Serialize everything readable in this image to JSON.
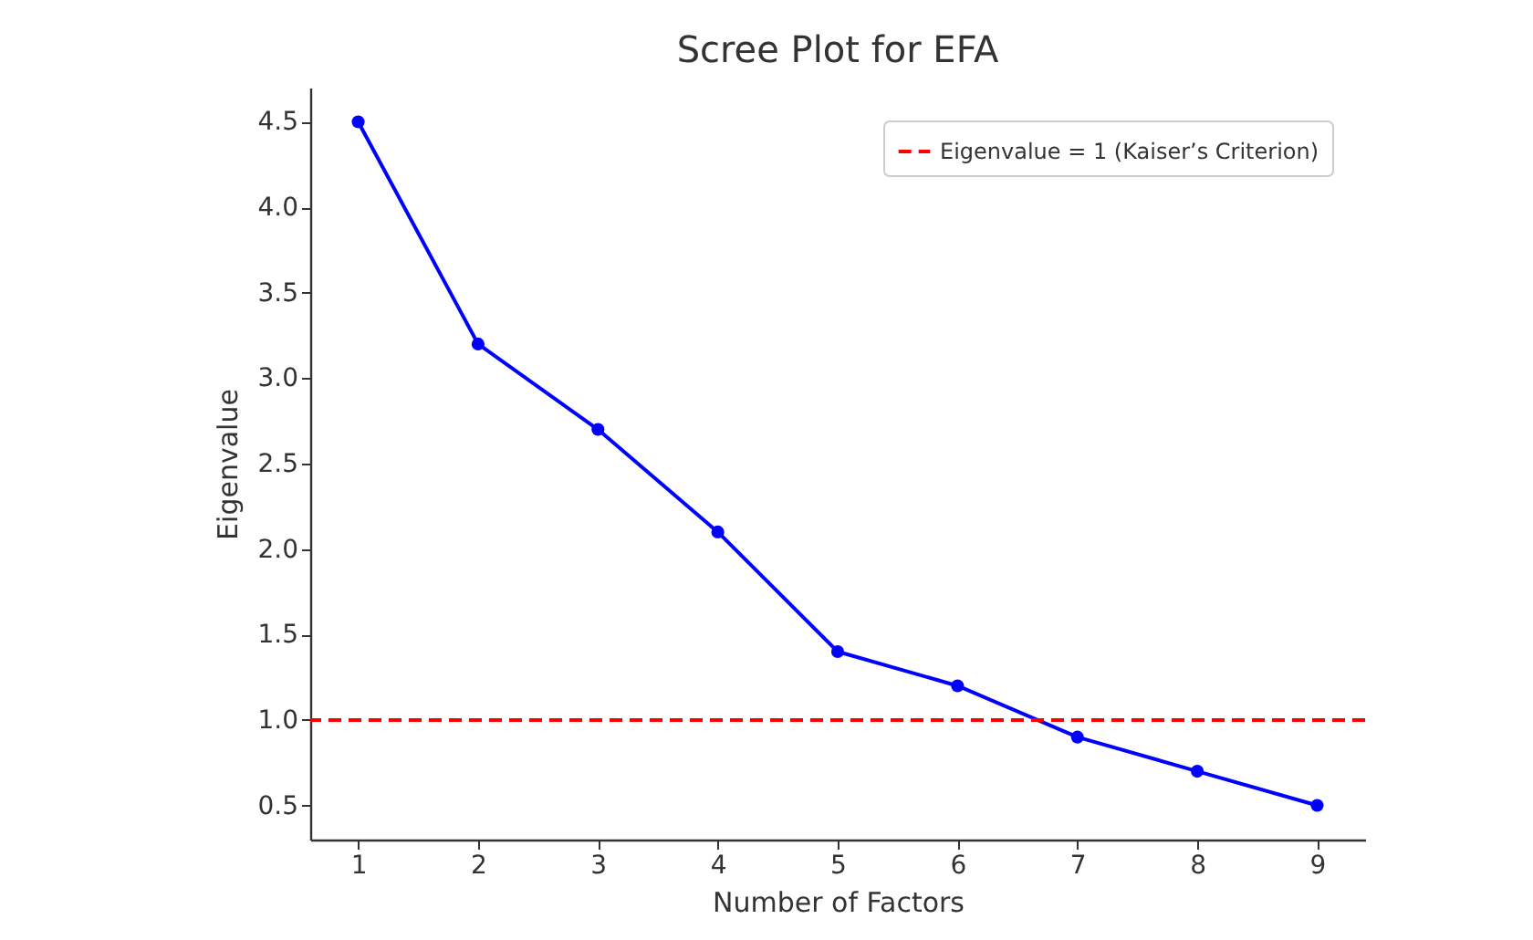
{
  "chart_data": {
    "type": "line",
    "title": "Scree Plot for EFA",
    "xlabel": "Number of Factors",
    "ylabel": "Eigenvalue",
    "x": [
      1,
      2,
      3,
      4,
      5,
      6,
      7,
      8,
      9
    ],
    "series": [
      {
        "color": "#0000ff",
        "values": [
          4.5,
          3.2,
          2.7,
          2.1,
          1.4,
          1.2,
          0.9,
          0.7,
          0.5
        ]
      }
    ],
    "xlim": [
      0.6,
      9.4
    ],
    "ylim": [
      0.3,
      4.7
    ],
    "xticks": [
      1,
      2,
      3,
      4,
      5,
      6,
      7,
      8,
      9
    ],
    "yticks": [
      0.5,
      {
        "value": 1,
        "label": "1.0"
      },
      1.5,
      {
        "value": 2,
        "label": "2.0"
      },
      2.5,
      {
        "value": 3,
        "label": "3.0"
      },
      3.5,
      {
        "value": 4,
        "label": "4.0"
      },
      4.5
    ],
    "ref_lines": [
      {
        "axis": "y",
        "value": 1,
        "label": "Eigenvalue = 1 (Kaiser’s Criterion)",
        "color": "#ff0000",
        "line_style": "dashed"
      }
    ],
    "legend": "top right",
    "marker": "circle",
    "line_style": "solid",
    "grid": false
  }
}
